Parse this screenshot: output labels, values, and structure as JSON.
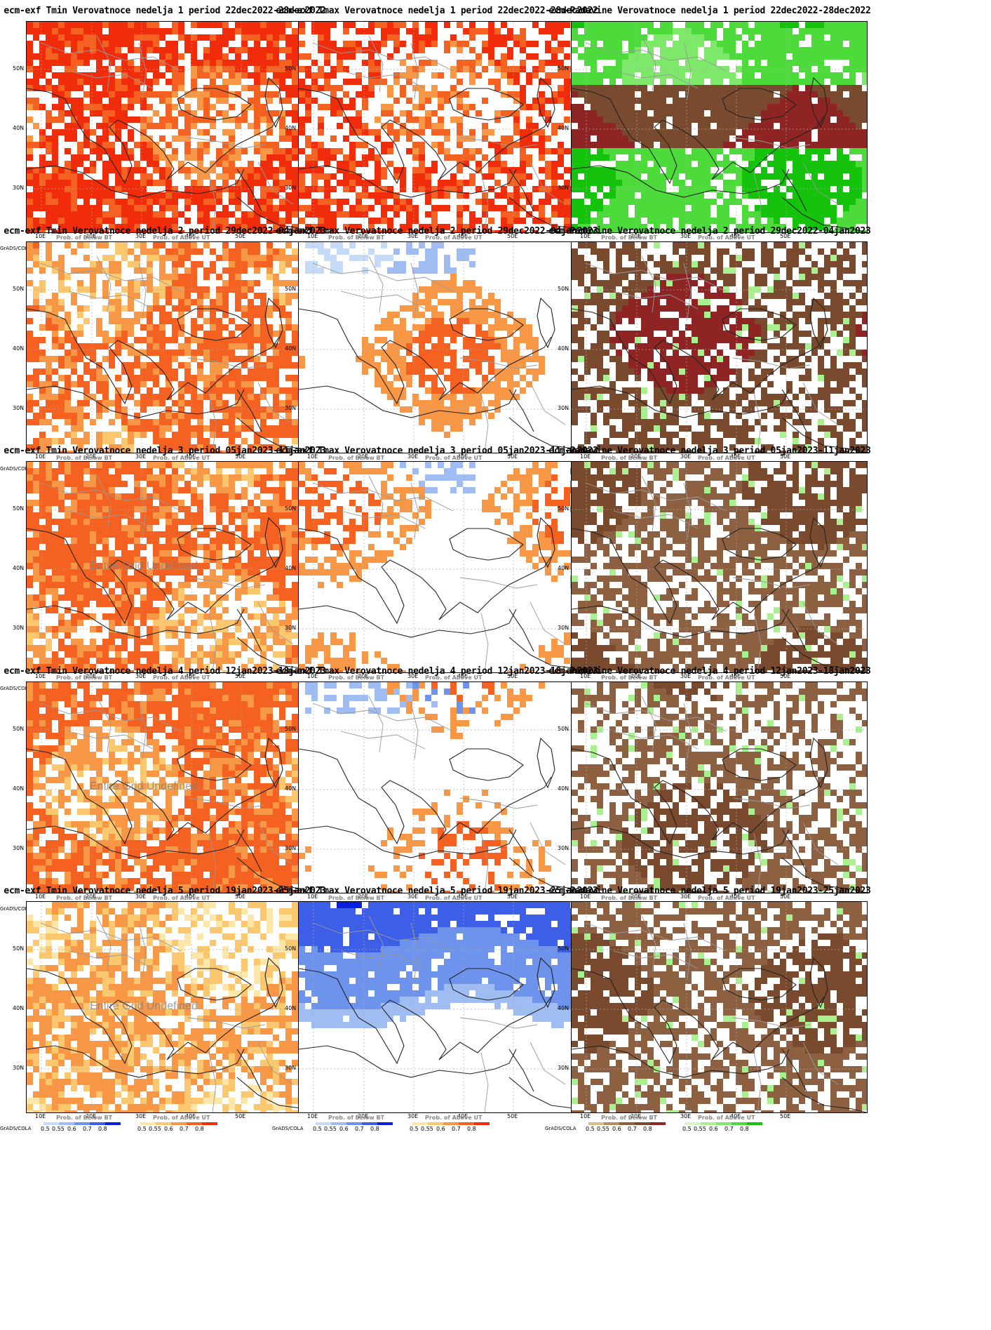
{
  "grads_label": "GrADS/COLA",
  "lat_labels": [
    "50N",
    "40N",
    "30N"
  ],
  "lon_labels": [
    "10E",
    "20E",
    "30E",
    "40E",
    "50E"
  ],
  "tick_labels": [
    "0.5",
    "0.55",
    "0.6",
    "0.7",
    "0.8"
  ],
  "legend_titles": {
    "below": "Prob. of Below BT",
    "above": "Prob. of Above UT"
  },
  "undefined_text": "Entire Grid Undefined",
  "palettes": {
    "tmin_below": [
      "#c6dbf7",
      "#9fbdf2",
      "#6e93ec",
      "#3d5ee6",
      "#0b1fe0"
    ],
    "tmin_above": [
      "#fde7a8",
      "#fbc76f",
      "#f89846",
      "#f56120",
      "#f12c0a"
    ],
    "tmax_below": [
      "#c6dbf7",
      "#9fbdf2",
      "#6e93ec",
      "#3d5ee6",
      "#0b1fe0"
    ],
    "tmax_above": [
      "#fde7a8",
      "#fbc76f",
      "#f89846",
      "#f56120",
      "#f12c0a"
    ],
    "prec_below": [
      "#d8bd88",
      "#b78f5e",
      "#8c6040",
      "#7a4a2e",
      "#8e2424"
    ],
    "prec_above": [
      "#d6f7c6",
      "#a8f090",
      "#7de86a",
      "#4ddb3b",
      "#15c20c"
    ]
  },
  "panels": [
    {
      "title": "ecm-exf Tmin Verovatnoce nedelja 1 period 22dec2022-28dec2022",
      "type": "tmin",
      "undefined": false,
      "fill": [
        "above",
        4,
        0.92
      ]
    },
    {
      "title": "ecm-exf Tmax Verovatnoce nedelja 1 period 22dec2022-28dec2022",
      "type": "tmax",
      "undefined": false,
      "fill": [
        "above",
        4,
        0.7
      ]
    },
    {
      "title": "ecm-Padavine Verovatnoce nedelja 1 period 22dec2022-28dec2022",
      "type": "prec",
      "undefined": false,
      "fill": [
        "mixed",
        4,
        0.9
      ]
    },
    {
      "title": "ecm-exf Tmin Verovatnoce nedelja 2 period 29dec2022-04jan2023",
      "type": "tmin",
      "undefined": false,
      "fill": [
        "above",
        3,
        0.85
      ]
    },
    {
      "title": "ecm-exf Tmax Verovatnoce nedelja 2 period 29dec2022-04jan2023",
      "type": "tmax",
      "undefined": false,
      "fill": [
        "sparse",
        2,
        0.35
      ]
    },
    {
      "title": "ecm-Padavine Verovatnoce nedelja 2 period 29dec2022-04jan2023",
      "type": "prec",
      "undefined": false,
      "fill": [
        "below",
        3,
        0.8
      ]
    },
    {
      "title": "ecm-exf Tmin Verovatnoce nedelja 3 period 05jan2023-11jan2023",
      "type": "tmin",
      "undefined": true,
      "fill": [
        "above",
        3,
        0.95
      ]
    },
    {
      "title": "ecm-exf Tmax Verovatnoce nedelja 3 period 05jan2023-11jan2023",
      "type": "tmax",
      "undefined": false,
      "fill": [
        "sparse",
        1,
        0.25
      ]
    },
    {
      "title": "ecm-Padavine Verovatnoce nedelja 3 period 05jan2023-11jan2023",
      "type": "prec",
      "undefined": false,
      "fill": [
        "below",
        2,
        0.75
      ]
    },
    {
      "title": "ecm-exf Tmin Verovatnoce nedelja 4 period 12jan2023-18jan2023",
      "type": "tmin",
      "undefined": true,
      "fill": [
        "above",
        3,
        0.98
      ]
    },
    {
      "title": "ecm-exf Tmax Verovatnoce nedelja 4 period 12jan2023-18jan2023",
      "type": "tmax",
      "undefined": false,
      "fill": [
        "sparse",
        1,
        0.15
      ]
    },
    {
      "title": "ecm-Padavine Verovatnoce nedelja 4 period 12jan2023-18jan2023",
      "type": "prec",
      "undefined": false,
      "fill": [
        "below",
        2,
        0.7
      ]
    },
    {
      "title": "ecm-exf Tmin Verovatnoce nedelja 5 period 19jan2023-25jan2023",
      "type": "tmin",
      "undefined": true,
      "fill": [
        "above",
        2,
        0.8
      ]
    },
    {
      "title": "ecm-exf Tmax Verovatnoce nedelja 5 period 19jan2023-25jan2023",
      "type": "tmax",
      "undefined": false,
      "fill": [
        "belowtop",
        2,
        0.5
      ]
    },
    {
      "title": "ecm-Padavine Verovatnoce nedelja 5 period 19jan2023-25jan2023",
      "type": "prec",
      "undefined": false,
      "fill": [
        "below",
        2,
        0.8
      ]
    }
  ]
}
